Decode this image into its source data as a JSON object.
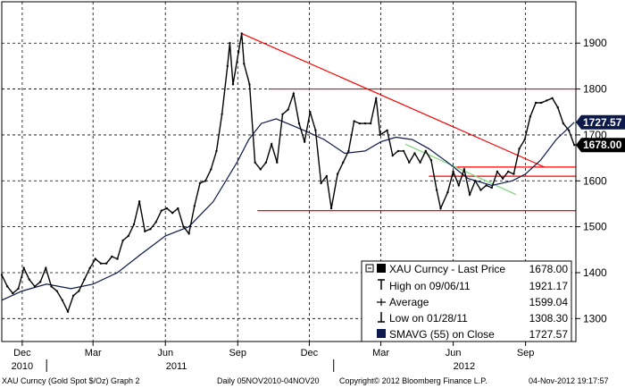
{
  "chart_data": {
    "type": "line",
    "ticker": "XAU Curncy",
    "x_range": [
      "2010-11-05",
      "2012-11-04"
    ],
    "ylim": [
      1250,
      1990
    ],
    "yticks": [
      1300,
      1400,
      1500,
      1600,
      1700,
      1800,
      1900
    ],
    "xticks": [
      {
        "label": "Dec",
        "date": "2010-12-01"
      },
      {
        "label": "Mar",
        "date": "2011-03-01"
      },
      {
        "label": "Jun",
        "date": "2011-06-01"
      },
      {
        "label": "Sep",
        "date": "2011-09-01"
      },
      {
        "label": "Dec",
        "date": "2011-12-01"
      },
      {
        "label": "Mar",
        "date": "2012-03-01"
      },
      {
        "label": "Jun",
        "date": "2012-06-01"
      },
      {
        "label": "Sep",
        "date": "2012-09-01"
      }
    ],
    "year_labels": [
      {
        "label": "2010",
        "date": "2010-12-01"
      },
      {
        "label": "2011",
        "date": "2011-06-15"
      },
      {
        "label": "2012",
        "date": "2012-06-15"
      }
    ],
    "grid": true,
    "series": [
      {
        "name": "XAU Curncy - Last Price",
        "color": "#000000",
        "points": [
          [
            "2010-11-05",
            1395
          ],
          [
            "2010-11-12",
            1370
          ],
          [
            "2010-11-19",
            1355
          ],
          [
            "2010-11-26",
            1365
          ],
          [
            "2010-12-03",
            1410
          ],
          [
            "2010-12-10",
            1385
          ],
          [
            "2010-12-17",
            1370
          ],
          [
            "2010-12-24",
            1380
          ],
          [
            "2010-12-31",
            1410
          ],
          [
            "2011-01-07",
            1370
          ],
          [
            "2011-01-14",
            1360
          ],
          [
            "2011-01-21",
            1340
          ],
          [
            "2011-01-28",
            1315
          ],
          [
            "2011-02-04",
            1350
          ],
          [
            "2011-02-11",
            1360
          ],
          [
            "2011-02-18",
            1385
          ],
          [
            "2011-02-25",
            1410
          ],
          [
            "2011-03-04",
            1430
          ],
          [
            "2011-03-11",
            1420
          ],
          [
            "2011-03-18",
            1420
          ],
          [
            "2011-03-25",
            1435
          ],
          [
            "2011-04-01",
            1430
          ],
          [
            "2011-04-08",
            1470
          ],
          [
            "2011-04-15",
            1480
          ],
          [
            "2011-04-22",
            1505
          ],
          [
            "2011-04-29",
            1555
          ],
          [
            "2011-05-06",
            1490
          ],
          [
            "2011-05-13",
            1495
          ],
          [
            "2011-05-20",
            1510
          ],
          [
            "2011-05-27",
            1535
          ],
          [
            "2011-06-03",
            1540
          ],
          [
            "2011-06-10",
            1530
          ],
          [
            "2011-06-17",
            1540
          ],
          [
            "2011-06-24",
            1500
          ],
          [
            "2011-07-01",
            1485
          ],
          [
            "2011-07-08",
            1545
          ],
          [
            "2011-07-15",
            1595
          ],
          [
            "2011-07-22",
            1600
          ],
          [
            "2011-07-29",
            1625
          ],
          [
            "2011-08-05",
            1665
          ],
          [
            "2011-08-12",
            1745
          ],
          [
            "2011-08-19",
            1850
          ],
          [
            "2011-08-22",
            1900
          ],
          [
            "2011-08-26",
            1810
          ],
          [
            "2011-09-02",
            1880
          ],
          [
            "2011-09-06",
            1921
          ],
          [
            "2011-09-09",
            1855
          ],
          [
            "2011-09-16",
            1810
          ],
          [
            "2011-09-23",
            1640
          ],
          [
            "2011-09-30",
            1625
          ],
          [
            "2011-10-07",
            1640
          ],
          [
            "2011-10-14",
            1680
          ],
          [
            "2011-10-21",
            1640
          ],
          [
            "2011-10-28",
            1745
          ],
          [
            "2011-11-04",
            1755
          ],
          [
            "2011-11-11",
            1790
          ],
          [
            "2011-11-18",
            1725
          ],
          [
            "2011-11-25",
            1685
          ],
          [
            "2011-12-02",
            1750
          ],
          [
            "2011-12-09",
            1710
          ],
          [
            "2011-12-16",
            1595
          ],
          [
            "2011-12-23",
            1610
          ],
          [
            "2011-12-29",
            1540
          ],
          [
            "2012-01-06",
            1615
          ],
          [
            "2012-01-13",
            1640
          ],
          [
            "2012-01-20",
            1665
          ],
          [
            "2012-01-27",
            1730
          ],
          [
            "2012-02-03",
            1725
          ],
          [
            "2012-02-10",
            1725
          ],
          [
            "2012-02-17",
            1725
          ],
          [
            "2012-02-24",
            1780
          ],
          [
            "2012-02-29",
            1700
          ],
          [
            "2012-03-09",
            1710
          ],
          [
            "2012-03-16",
            1655
          ],
          [
            "2012-03-23",
            1665
          ],
          [
            "2012-03-30",
            1665
          ],
          [
            "2012-04-06",
            1640
          ],
          [
            "2012-04-13",
            1660
          ],
          [
            "2012-04-20",
            1640
          ],
          [
            "2012-04-27",
            1665
          ],
          [
            "2012-05-04",
            1645
          ],
          [
            "2012-05-11",
            1580
          ],
          [
            "2012-05-16",
            1540
          ],
          [
            "2012-05-25",
            1575
          ],
          [
            "2012-06-01",
            1620
          ],
          [
            "2012-06-08",
            1590
          ],
          [
            "2012-06-15",
            1625
          ],
          [
            "2012-06-22",
            1570
          ],
          [
            "2012-06-29",
            1600
          ],
          [
            "2012-07-06",
            1580
          ],
          [
            "2012-07-13",
            1590
          ],
          [
            "2012-07-20",
            1585
          ],
          [
            "2012-07-27",
            1620
          ],
          [
            "2012-08-03",
            1605
          ],
          [
            "2012-08-10",
            1620
          ],
          [
            "2012-08-17",
            1615
          ],
          [
            "2012-08-24",
            1670
          ],
          [
            "2012-08-31",
            1690
          ],
          [
            "2012-09-07",
            1740
          ],
          [
            "2012-09-14",
            1770
          ],
          [
            "2012-09-21",
            1770
          ],
          [
            "2012-09-28",
            1775
          ],
          [
            "2012-10-05",
            1780
          ],
          [
            "2012-10-12",
            1760
          ],
          [
            "2012-10-19",
            1725
          ],
          [
            "2012-10-26",
            1710
          ],
          [
            "2012-11-02",
            1678
          ]
        ]
      },
      {
        "name": "SMAVG (55) on Close",
        "color": "#0b1a4a",
        "points": [
          [
            "2010-11-05",
            1340
          ],
          [
            "2010-12-01",
            1360
          ],
          [
            "2011-01-01",
            1375
          ],
          [
            "2011-02-01",
            1365
          ],
          [
            "2011-03-01",
            1375
          ],
          [
            "2011-04-01",
            1400
          ],
          [
            "2011-05-01",
            1440
          ],
          [
            "2011-06-01",
            1480
          ],
          [
            "2011-07-01",
            1500
          ],
          [
            "2011-08-01",
            1555
          ],
          [
            "2011-08-31",
            1640
          ],
          [
            "2011-09-15",
            1690
          ],
          [
            "2011-10-01",
            1725
          ],
          [
            "2011-10-20",
            1735
          ],
          [
            "2011-11-10",
            1720
          ],
          [
            "2011-12-01",
            1705
          ],
          [
            "2011-12-20",
            1690
          ],
          [
            "2012-01-15",
            1660
          ],
          [
            "2012-02-10",
            1665
          ],
          [
            "2012-03-01",
            1685
          ],
          [
            "2012-03-20",
            1695
          ],
          [
            "2012-04-10",
            1690
          ],
          [
            "2012-05-01",
            1670
          ],
          [
            "2012-05-25",
            1640
          ],
          [
            "2012-06-20",
            1605
          ],
          [
            "2012-07-20",
            1590
          ],
          [
            "2012-08-15",
            1600
          ],
          [
            "2012-09-01",
            1615
          ],
          [
            "2012-09-20",
            1645
          ],
          [
            "2012-10-10",
            1690
          ],
          [
            "2012-11-02",
            1727.57
          ]
        ]
      }
    ],
    "trendlines": [
      {
        "color": "#ff0000",
        "from": [
          "2011-09-06",
          1921
        ],
        "to": [
          "2012-09-25",
          1630
        ]
      },
      {
        "color": "#ff0000",
        "from": [
          "2011-10-10",
          1800
        ],
        "to": [
          "2012-11-04",
          1800
        ]
      },
      {
        "color": "#ff0000",
        "from": [
          "2011-09-26",
          1535
        ],
        "to": [
          "2012-11-04",
          1535
        ]
      },
      {
        "color": "#ff0000",
        "from": [
          "2012-05-01",
          1610
        ],
        "to": [
          "2012-11-04",
          1610
        ]
      },
      {
        "color": "#ff0000",
        "from": [
          "2012-06-05",
          1630
        ],
        "to": [
          "2012-11-04",
          1630
        ]
      },
      {
        "color": "#7fd47f",
        "from": [
          "2012-04-01",
          1680
        ],
        "to": [
          "2012-08-20",
          1570
        ]
      }
    ],
    "price_tags": [
      {
        "value": 1727.57,
        "text": "1727.57",
        "bg": "#0b1a4a",
        "fg": "#ffffff"
      },
      {
        "value": 1678.0,
        "text": "1678.00",
        "bg": "#000000",
        "fg": "#ffffff"
      }
    ]
  },
  "legend": {
    "rows": [
      {
        "icon": "last-price-icon",
        "label": "XAU Curncy - Last Price",
        "value": "1678.00"
      },
      {
        "icon": "high-icon",
        "label": "High on 09/06/11",
        "value": "1921.17"
      },
      {
        "icon": "average-icon",
        "label": "Average",
        "value": "1599.04"
      },
      {
        "icon": "low-icon",
        "label": "Low on 01/28/11",
        "value": "1308.30"
      },
      {
        "icon": "smavg-icon",
        "label": "SMAVG (55) on Close",
        "value": "1727.57"
      }
    ]
  },
  "footer": {
    "left": "XAU Curncy (Gold Spot  $/Oz) Graph 2",
    "daily": "Daily 05NOV2010-04NOV20",
    "copyright": "Copyright© 2012 Bloomberg Finance L.P.",
    "date": "04-Nov-2012 19:17:57"
  }
}
